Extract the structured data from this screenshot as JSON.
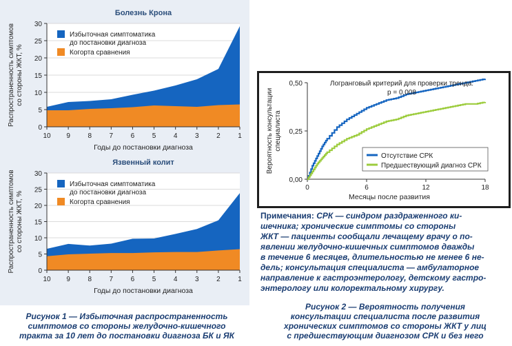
{
  "chart_data": [
    {
      "type": "area",
      "title": "Болезнь Крона",
      "xlabel": "Годы до постановки диагноза",
      "ylabel": "Распространенность симптомов со стороны ЖКТ, %",
      "x": [
        10,
        9,
        8,
        7,
        6,
        5,
        4,
        3,
        2,
        1
      ],
      "ylim": [
        0,
        30
      ],
      "yticks": [
        "0",
        "5",
        "10",
        "15",
        "20",
        "25",
        "30"
      ],
      "series": [
        {
          "name": "Избыточная симптоматика до постановки диагноза",
          "color": "#1565c0",
          "values": [
            5.8,
            7.2,
            7.5,
            8.0,
            9.3,
            10.5,
            12.0,
            13.8,
            16.8,
            29.2
          ]
        },
        {
          "name": "Когорта сравнения",
          "color": "#f08a24",
          "values": [
            4.8,
            4.8,
            5.2,
            5.4,
            5.7,
            6.2,
            6.0,
            5.8,
            6.3,
            6.5
          ]
        }
      ],
      "legend": "top-left"
    },
    {
      "type": "area",
      "title": "Язвенный колит",
      "xlabel": "Годы до постановки диагноза",
      "ylabel": "Распространенность симптомов со стороны ЖКТ, %",
      "x": [
        10,
        9,
        8,
        7,
        6,
        5,
        4,
        3,
        2,
        1
      ],
      "ylim": [
        0,
        30
      ],
      "yticks": [
        "0",
        "5",
        "10",
        "15",
        "20",
        "25",
        "30"
      ],
      "series": [
        {
          "name": "Избыточная симптоматика до постановки диагноза",
          "color": "#1565c0",
          "values": [
            6.6,
            8.1,
            7.6,
            8.2,
            9.7,
            9.8,
            11.2,
            12.7,
            15.4,
            23.8
          ]
        },
        {
          "name": "Когорта сравнения",
          "color": "#f08a24",
          "values": [
            4.3,
            4.9,
            5.1,
            5.3,
            5.3,
            5.5,
            5.6,
            5.6,
            6.1,
            6.5
          ]
        }
      ],
      "legend": "top-left"
    },
    {
      "type": "line",
      "annotation": [
        "Логранговый критерий для проверки тренда:",
        "p = 0,008"
      ],
      "xlabel": "Месяцы после развития",
      "ylabel": "Вероятность консультации специалиста",
      "xlim": [
        0,
        18
      ],
      "ylim": [
        0,
        0.5
      ],
      "xticks": [
        "0",
        "6",
        "12",
        "18"
      ],
      "yticks": [
        "0,00",
        "0,25",
        "0,50"
      ],
      "series": [
        {
          "name": "Отсутствие СРК",
          "color": "#1565c0",
          "x": [
            0,
            0.5,
            1,
            1.5,
            2,
            3,
            4,
            5,
            6,
            7,
            8,
            9,
            10,
            11,
            12,
            13,
            14,
            15,
            16,
            17,
            18
          ],
          "y": [
            0,
            0.07,
            0.12,
            0.17,
            0.21,
            0.27,
            0.31,
            0.34,
            0.37,
            0.39,
            0.41,
            0.42,
            0.44,
            0.45,
            0.46,
            0.47,
            0.48,
            0.49,
            0.5,
            0.51,
            0.52
          ]
        },
        {
          "name": "Предшествующий диагноз СРК",
          "color": "#9ccc3c",
          "x": [
            0,
            0.5,
            1,
            1.5,
            2,
            3,
            4,
            5,
            6,
            7,
            8,
            9,
            10,
            11,
            12,
            13,
            14,
            15,
            16,
            17,
            18
          ],
          "y": [
            0,
            0.04,
            0.08,
            0.11,
            0.14,
            0.18,
            0.21,
            0.23,
            0.26,
            0.28,
            0.3,
            0.31,
            0.33,
            0.34,
            0.35,
            0.36,
            0.37,
            0.38,
            0.39,
            0.39,
            0.4
          ]
        }
      ],
      "legend": "bottom-right"
    }
  ],
  "captions": {
    "fig1": [
      "Рисунок 1 — Избыточная распространенность",
      "симптомов со стороны желудочно-кишечного",
      "тракта за 10 лет до постановки диагноза БК и ЯК"
    ],
    "fig2": [
      "Рисунок 2 — Вероятность получения",
      "консультации специалиста после развития",
      "хронических симптомов со стороны ЖКТ у лиц",
      "с предшествующим диагнозом СРК и без него"
    ]
  },
  "notes": {
    "label": "Примечания:",
    "lines": [
      "СРК — синдром раздраженного ки-",
      "шечника; хронические симптомы со стороны",
      "ЖКТ — пациенты сообщали лечащему врачу о по-",
      "явлении желудочно-кишечных симптомов дважды",
      "в течение 6 месяцев, длительностью не менее 6 не-",
      "дель; консультация специалиста — амбулаторное",
      "направление к гастроэнтерологу, детскому гастро-",
      "энтерологу или колоректальному хирургу."
    ]
  }
}
